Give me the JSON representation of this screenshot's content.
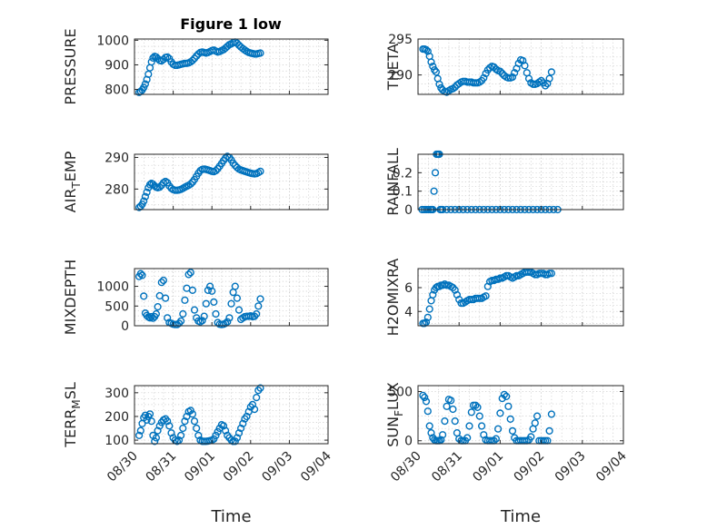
{
  "title": "Figure 1 low",
  "chart_data": [
    {
      "type": "scatter",
      "name": "PRESSURE",
      "ylabel": "PRESSURE",
      "xlim": [
        "08/30",
        "09/04"
      ],
      "ylim": [
        780,
        1005
      ],
      "yticks": [
        800,
        900,
        1000
      ],
      "xticklabels_visible": false,
      "grid": true,
      "minor_grid": true,
      "x": [
        0.12,
        0.16,
        0.2,
        0.24,
        0.28,
        0.32,
        0.36,
        0.4,
        0.44,
        0.48,
        0.52,
        0.56,
        0.6,
        0.65,
        0.7,
        0.75,
        0.8,
        0.85,
        0.9,
        0.95,
        1.0,
        1.05,
        1.1,
        1.15,
        1.2,
        1.25,
        1.3,
        1.35,
        1.4,
        1.45,
        1.5,
        1.55,
        1.6,
        1.65,
        1.7,
        1.75,
        1.8,
        1.85,
        1.9,
        1.95,
        2.0,
        2.05,
        2.1,
        2.15,
        2.2,
        2.25,
        2.3,
        2.35,
        2.4,
        2.45,
        2.5,
        2.55,
        2.6,
        2.65,
        2.7,
        2.75,
        2.8,
        2.85,
        2.9,
        2.95,
        3.0,
        3.05,
        3.1,
        3.15,
        3.2,
        3.25
      ],
      "y": [
        788,
        792,
        798,
        808,
        822,
        840,
        862,
        888,
        912,
        928,
        934,
        932,
        925,
        918,
        916,
        922,
        930,
        932,
        925,
        912,
        902,
        898,
        898,
        900,
        902,
        904,
        906,
        906,
        908,
        912,
        918,
        926,
        936,
        944,
        950,
        952,
        950,
        948,
        950,
        954,
        958,
        960,
        956,
        952,
        954,
        958,
        962,
        968,
        975,
        982,
        985,
        990,
        993,
        988,
        980,
        972,
        966,
        960,
        955,
        950,
        948,
        946,
        944,
        944,
        946,
        948
      ]
    },
    {
      "type": "scatter",
      "name": "THETA",
      "ylabel": "THETA",
      "xlim": [
        "08/30",
        "09/04"
      ],
      "ylim": [
        287.3,
        295
      ],
      "yticks": [
        290,
        295
      ],
      "xticklabels_visible": false,
      "grid": true,
      "minor_grid": true,
      "x": [
        0.12,
        0.16,
        0.2,
        0.24,
        0.28,
        0.32,
        0.36,
        0.4,
        0.44,
        0.48,
        0.52,
        0.56,
        0.6,
        0.65,
        0.7,
        0.75,
        0.8,
        0.85,
        0.9,
        0.95,
        1.0,
        1.05,
        1.1,
        1.15,
        1.2,
        1.25,
        1.3,
        1.35,
        1.4,
        1.45,
        1.5,
        1.55,
        1.6,
        1.65,
        1.7,
        1.75,
        1.8,
        1.85,
        1.9,
        1.95,
        2.0,
        2.05,
        2.1,
        2.15,
        2.2,
        2.25,
        2.3,
        2.35,
        2.4,
        2.45,
        2.5,
        2.55,
        2.6,
        2.65,
        2.7,
        2.75,
        2.8,
        2.85,
        2.9,
        2.95,
        3.0,
        3.05,
        3.1,
        3.15,
        3.2,
        3.25
      ],
      "y": [
        293.6,
        293.6,
        293.5,
        293.3,
        292.6,
        291.8,
        291.2,
        290.7,
        290.4,
        289.5,
        288.7,
        288.2,
        287.9,
        287.7,
        287.6,
        287.8,
        288.0,
        288.1,
        288.3,
        288.6,
        288.8,
        289.0,
        289.1,
        289.1,
        289.0,
        289.0,
        289.0,
        288.9,
        288.9,
        288.9,
        289.0,
        289.2,
        289.6,
        290.2,
        290.7,
        291.0,
        291.2,
        291.1,
        290.8,
        290.6,
        290.5,
        290.2,
        289.9,
        289.7,
        289.6,
        289.6,
        289.7,
        290.3,
        290.9,
        291.6,
        292.1,
        292.0,
        291.3,
        290.3,
        289.5,
        288.9,
        288.7,
        288.7,
        288.8,
        289.0,
        289.2,
        288.9,
        288.5,
        288.8,
        289.5,
        290.4
      ]
    },
    {
      "type": "scatter",
      "name": "AIR_TEMP",
      "ylabel": "AIR",
      "xlim": [
        "08/30",
        "09/04"
      ],
      "ylim": [
        273.5,
        291
      ],
      "yticks": [
        280,
        290
      ],
      "xticklabels_visible": false,
      "grid": true,
      "minor_grid": true,
      "x": [
        0.12,
        0.16,
        0.2,
        0.24,
        0.28,
        0.32,
        0.36,
        0.4,
        0.44,
        0.48,
        0.52,
        0.56,
        0.6,
        0.65,
        0.7,
        0.75,
        0.8,
        0.85,
        0.9,
        0.95,
        1.0,
        1.05,
        1.1,
        1.15,
        1.2,
        1.25,
        1.3,
        1.35,
        1.4,
        1.45,
        1.5,
        1.55,
        1.6,
        1.65,
        1.7,
        1.75,
        1.8,
        1.85,
        1.9,
        1.95,
        2.0,
        2.05,
        2.1,
        2.15,
        2.2,
        2.25,
        2.3,
        2.35,
        2.4,
        2.45,
        2.5,
        2.55,
        2.6,
        2.65,
        2.7,
        2.75,
        2.8,
        2.85,
        2.9,
        2.95,
        3.0,
        3.05,
        3.1,
        3.15,
        3.2,
        3.25
      ],
      "y": [
        274.2,
        274.6,
        275.2,
        276.2,
        277.6,
        279.0,
        280.4,
        281.4,
        281.8,
        281.5,
        281.0,
        280.6,
        280.4,
        280.6,
        281.2,
        282.0,
        282.4,
        282.0,
        281.0,
        280.2,
        279.8,
        279.6,
        279.6,
        279.7,
        279.9,
        280.2,
        280.6,
        280.9,
        281.2,
        281.6,
        282.2,
        283.0,
        284.0,
        285.0,
        285.8,
        286.2,
        286.3,
        286.2,
        286.0,
        285.8,
        285.6,
        285.5,
        285.8,
        286.4,
        287.2,
        288.1,
        289.0,
        289.8,
        290.3,
        290.0,
        289.2,
        288.2,
        287.4,
        286.8,
        286.3,
        286.0,
        285.8,
        285.6,
        285.4,
        285.2,
        285.0,
        284.9,
        284.8,
        284.9,
        285.2,
        285.6
      ]
    },
    {
      "type": "scatter",
      "name": "RAINFALL",
      "ylabel": "RAINFALL",
      "xlim": [
        "08/30",
        "09/04"
      ],
      "ylim": [
        0,
        0.3
      ],
      "yticks": [
        0,
        0.1,
        0.2
      ],
      "xticklabels_visible": false,
      "grid": true,
      "minor_grid": true,
      "x": [
        0.1,
        0.15,
        0.2,
        0.25,
        0.3,
        0.33,
        0.36,
        0.39,
        0.42,
        0.45,
        0.48,
        0.5,
        0.52,
        0.54,
        0.56,
        0.6,
        0.7,
        0.8,
        0.9,
        1.0,
        1.1,
        1.2,
        1.3,
        1.4,
        1.5,
        1.6,
        1.7,
        1.8,
        1.9,
        2.0,
        2.1,
        2.2,
        2.3,
        2.4,
        2.5,
        2.6,
        2.7,
        2.8,
        2.9,
        3.0,
        3.1,
        3.2,
        3.3,
        3.4
      ],
      "y": [
        0,
        0,
        0,
        0,
        0,
        0,
        0,
        0.1,
        0.2,
        0.3,
        0.3,
        0.3,
        0.3,
        0,
        0,
        0,
        0,
        0,
        0,
        0,
        0,
        0,
        0,
        0,
        0,
        0,
        0,
        0,
        0,
        0,
        0,
        0,
        0,
        0,
        0,
        0,
        0,
        0,
        0,
        0,
        0,
        0,
        0,
        0
      ]
    },
    {
      "type": "scatter",
      "name": "MIXDEPTH",
      "ylabel": "MIXDEPTH",
      "xlim": [
        "08/30",
        "09/04"
      ],
      "ylim": [
        0,
        1450
      ],
      "yticks": [
        0,
        500,
        1000
      ],
      "xticklabels_visible": false,
      "grid": true,
      "minor_grid": true,
      "x": [
        0.12,
        0.16,
        0.2,
        0.24,
        0.28,
        0.32,
        0.36,
        0.4,
        0.44,
        0.48,
        0.52,
        0.56,
        0.6,
        0.65,
        0.7,
        0.75,
        0.8,
        0.85,
        0.9,
        0.95,
        1.0,
        1.05,
        1.1,
        1.15,
        1.2,
        1.25,
        1.3,
        1.35,
        1.4,
        1.45,
        1.5,
        1.55,
        1.6,
        1.65,
        1.7,
        1.75,
        1.8,
        1.85,
        1.9,
        1.95,
        2.0,
        2.05,
        2.1,
        2.15,
        2.2,
        2.25,
        2.3,
        2.35,
        2.4,
        2.45,
        2.5,
        2.55,
        2.6,
        2.65,
        2.7,
        2.75,
        2.8,
        2.85,
        2.9,
        2.95,
        3.0,
        3.05,
        3.1,
        3.15,
        3.2,
        3.25
      ],
      "y": [
        1250,
        1320,
        1280,
        750,
        320,
        260,
        220,
        200,
        230,
        190,
        230,
        300,
        480,
        760,
        1100,
        1150,
        700,
        200,
        80,
        60,
        40,
        30,
        30,
        60,
        120,
        300,
        650,
        950,
        1300,
        1350,
        900,
        400,
        200,
        120,
        100,
        130,
        240,
        560,
        900,
        1000,
        880,
        600,
        300,
        80,
        40,
        30,
        40,
        60,
        100,
        200,
        560,
        850,
        1000,
        700,
        400,
        160,
        200,
        230,
        240,
        240,
        250,
        230,
        240,
        300,
        500,
        680
      ]
    },
    {
      "type": "scatter",
      "name": "H2OMIXRA",
      "ylabel": "H2OMIXRA",
      "xlim": [
        "08/30",
        "09/04"
      ],
      "ylim": [
        2.8,
        7.6
      ],
      "yticks": [
        4,
        6
      ],
      "xticklabels_visible": false,
      "grid": true,
      "minor_grid": true,
      "x": [
        0.12,
        0.16,
        0.2,
        0.24,
        0.28,
        0.32,
        0.36,
        0.4,
        0.44,
        0.48,
        0.52,
        0.56,
        0.6,
        0.65,
        0.7,
        0.75,
        0.8,
        0.85,
        0.9,
        0.95,
        1.0,
        1.05,
        1.1,
        1.15,
        1.2,
        1.25,
        1.3,
        1.35,
        1.4,
        1.45,
        1.5,
        1.55,
        1.6,
        1.65,
        1.7,
        1.75,
        1.8,
        1.85,
        1.9,
        1.95,
        2.0,
        2.05,
        2.1,
        2.15,
        2.2,
        2.25,
        2.3,
        2.35,
        2.4,
        2.45,
        2.5,
        2.55,
        2.6,
        2.65,
        2.7,
        2.75,
        2.8,
        2.85,
        2.9,
        2.95,
        3.0,
        3.05,
        3.1,
        3.15,
        3.2,
        3.25
      ],
      "y": [
        3.0,
        3.0,
        3.1,
        3.5,
        4.2,
        4.9,
        5.4,
        5.8,
        6.0,
        6.1,
        6.1,
        6.2,
        6.2,
        6.3,
        6.2,
        6.2,
        6.1,
        6.0,
        5.8,
        5.4,
        5.0,
        4.7,
        4.7,
        4.8,
        4.9,
        5.0,
        5.0,
        5.0,
        5.1,
        5.1,
        5.1,
        5.1,
        5.2,
        5.3,
        6.1,
        6.5,
        6.6,
        6.6,
        6.7,
        6.7,
        6.8,
        6.8,
        6.9,
        7.0,
        7.0,
        6.9,
        6.8,
        6.9,
        7.0,
        7.0,
        7.1,
        7.2,
        7.3,
        7.3,
        7.3,
        7.3,
        7.2,
        7.1,
        7.1,
        7.2,
        7.2,
        7.2,
        7.1,
        7.1,
        7.2,
        7.2
      ]
    },
    {
      "type": "scatter",
      "name": "TERR_MSL",
      "ylabel": "TERR",
      "xlim": [
        "08/30",
        "09/04"
      ],
      "ylim": [
        85,
        330
      ],
      "yticks": [
        100,
        200,
        300
      ],
      "xticks": [
        "08/30",
        "08/31",
        "09/01",
        "09/02",
        "09/03",
        "09/04"
      ],
      "xlabel": "Time",
      "grid": true,
      "minor_grid": true,
      "x": [
        0.12,
        0.16,
        0.2,
        0.24,
        0.28,
        0.32,
        0.36,
        0.4,
        0.44,
        0.48,
        0.52,
        0.56,
        0.6,
        0.65,
        0.7,
        0.75,
        0.8,
        0.85,
        0.9,
        0.95,
        1.0,
        1.05,
        1.1,
        1.15,
        1.2,
        1.25,
        1.3,
        1.35,
        1.4,
        1.45,
        1.5,
        1.55,
        1.6,
        1.65,
        1.7,
        1.75,
        1.8,
        1.85,
        1.9,
        1.95,
        2.0,
        2.05,
        2.1,
        2.15,
        2.2,
        2.25,
        2.3,
        2.35,
        2.4,
        2.45,
        2.5,
        2.55,
        2.6,
        2.65,
        2.7,
        2.75,
        2.8,
        2.85,
        2.9,
        2.95,
        3.0,
        3.05,
        3.1,
        3.15,
        3.2,
        3.25
      ],
      "y": [
        120,
        140,
        170,
        195,
        205,
        185,
        200,
        210,
        180,
        120,
        95,
        110,
        140,
        160,
        175,
        185,
        190,
        180,
        160,
        130,
        110,
        100,
        95,
        100,
        120,
        150,
        180,
        200,
        220,
        225,
        210,
        180,
        150,
        120,
        100,
        95,
        95,
        95,
        96,
        98,
        100,
        105,
        120,
        135,
        150,
        165,
        160,
        140,
        120,
        110,
        100,
        95,
        95,
        110,
        130,
        150,
        170,
        190,
        200,
        220,
        240,
        250,
        230,
        280,
        310,
        320
      ]
    },
    {
      "type": "scatter",
      "name": "SUN_FLUX",
      "ylabel": "SUN",
      "xlim": [
        "08/30",
        "09/04"
      ],
      "ylim": [
        -30,
        560
      ],
      "yticks": [
        0,
        500
      ],
      "xticks": [
        "08/30",
        "08/31",
        "09/01",
        "09/02",
        "09/03",
        "09/04"
      ],
      "xlabel": "Time",
      "grid": true,
      "minor_grid": true,
      "x": [
        0.12,
        0.16,
        0.2,
        0.24,
        0.28,
        0.32,
        0.36,
        0.4,
        0.44,
        0.48,
        0.52,
        0.56,
        0.6,
        0.65,
        0.7,
        0.75,
        0.8,
        0.85,
        0.9,
        0.95,
        1.0,
        1.05,
        1.1,
        1.15,
        1.2,
        1.25,
        1.3,
        1.35,
        1.4,
        1.45,
        1.5,
        1.55,
        1.6,
        1.65,
        1.7,
        1.75,
        1.8,
        1.85,
        1.9,
        1.95,
        2.0,
        2.05,
        2.1,
        2.15,
        2.2,
        2.25,
        2.3,
        2.35,
        2.4,
        2.45,
        2.5,
        2.55,
        2.6,
        2.65,
        2.7,
        2.75,
        2.8,
        2.85,
        2.9,
        2.95,
        3.0,
        3.05,
        3.1,
        3.15,
        3.2,
        3.25
      ],
      "y": [
        460,
        440,
        400,
        300,
        150,
        80,
        30,
        10,
        0,
        0,
        0,
        10,
        60,
        200,
        350,
        420,
        410,
        320,
        200,
        80,
        20,
        0,
        0,
        0,
        30,
        150,
        290,
        360,
        360,
        340,
        250,
        150,
        60,
        10,
        0,
        0,
        0,
        0,
        20,
        120,
        280,
        430,
        470,
        450,
        350,
        220,
        100,
        30,
        0,
        0,
        0,
        0,
        0,
        0,
        10,
        40,
        120,
        180,
        250,
        0,
        0,
        0,
        0,
        0,
        100,
        270
      ]
    }
  ]
}
